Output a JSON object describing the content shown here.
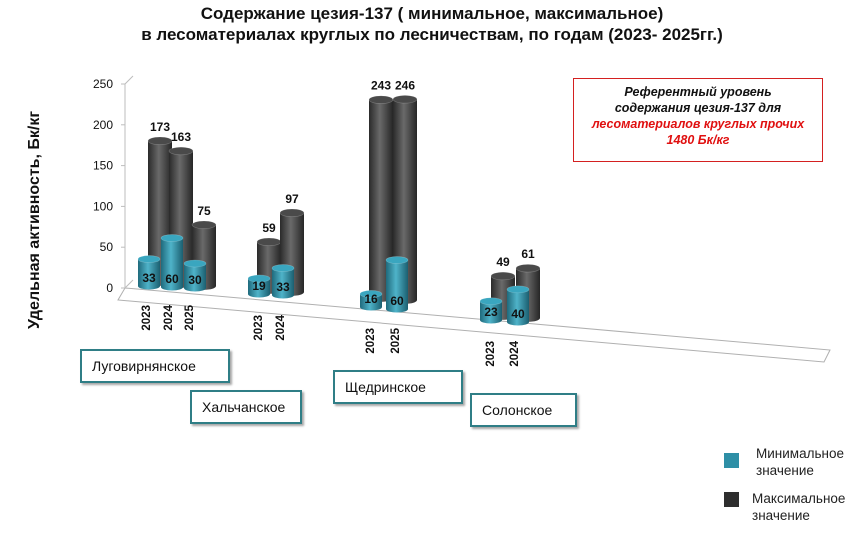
{
  "title_line1": "Содержание цезия-137 ( минимальное, максимальное)",
  "title_line2": "в лесоматериалах круглых по лесничествам, по годам (2023- 2025гг.)",
  "reference_box": {
    "line1": "Референтный уровень",
    "line2": "содержания цезия-137  для",
    "line3": "лесоматериалов круглых прочих",
    "line4": "1480 Бк/кг"
  },
  "legend": {
    "min_label": "Минимальное значение",
    "max_label": "Максимальное значение"
  },
  "colors": {
    "min": "#2e8fa6",
    "max": "#3c3c3c",
    "reference_border": "#d42020",
    "reference_text": "#e01010",
    "forest_box_border": "#2f7e86"
  },
  "chart_data": {
    "type": "bar",
    "style": "3d-cylinder",
    "ylabel": "Удельная активность, Бк/кг",
    "ylim": [
      0,
      250
    ],
    "yticks": [
      "250",
      "200",
      "150",
      "100",
      "50",
      "0"
    ],
    "series": [
      {
        "name": "Минимальное значение"
      },
      {
        "name": "Максимальное значение"
      }
    ],
    "groups": [
      {
        "forestry": "Луговирнянское",
        "bars": [
          {
            "year": "2023",
            "min": 33,
            "max": 173
          },
          {
            "year": "2024",
            "min": 60,
            "max": 163
          },
          {
            "year": "2025",
            "min": 30,
            "max": 75
          }
        ]
      },
      {
        "forestry": "Хальчанское",
        "bars": [
          {
            "year": "2023",
            "min": 19,
            "max": 59
          },
          {
            "year": "2024",
            "min": 33,
            "max": 97
          }
        ]
      },
      {
        "forestry": "Щедринское",
        "bars": [
          {
            "year": "2023",
            "min": 16,
            "max": 243
          },
          {
            "year": "2025",
            "min": 60,
            "max": 246
          }
        ]
      },
      {
        "forestry": "Солонское",
        "bars": [
          {
            "year": "2023",
            "min": 23,
            "max": 49
          },
          {
            "year": "2024",
            "min": 40,
            "max": 61
          }
        ]
      }
    ]
  }
}
